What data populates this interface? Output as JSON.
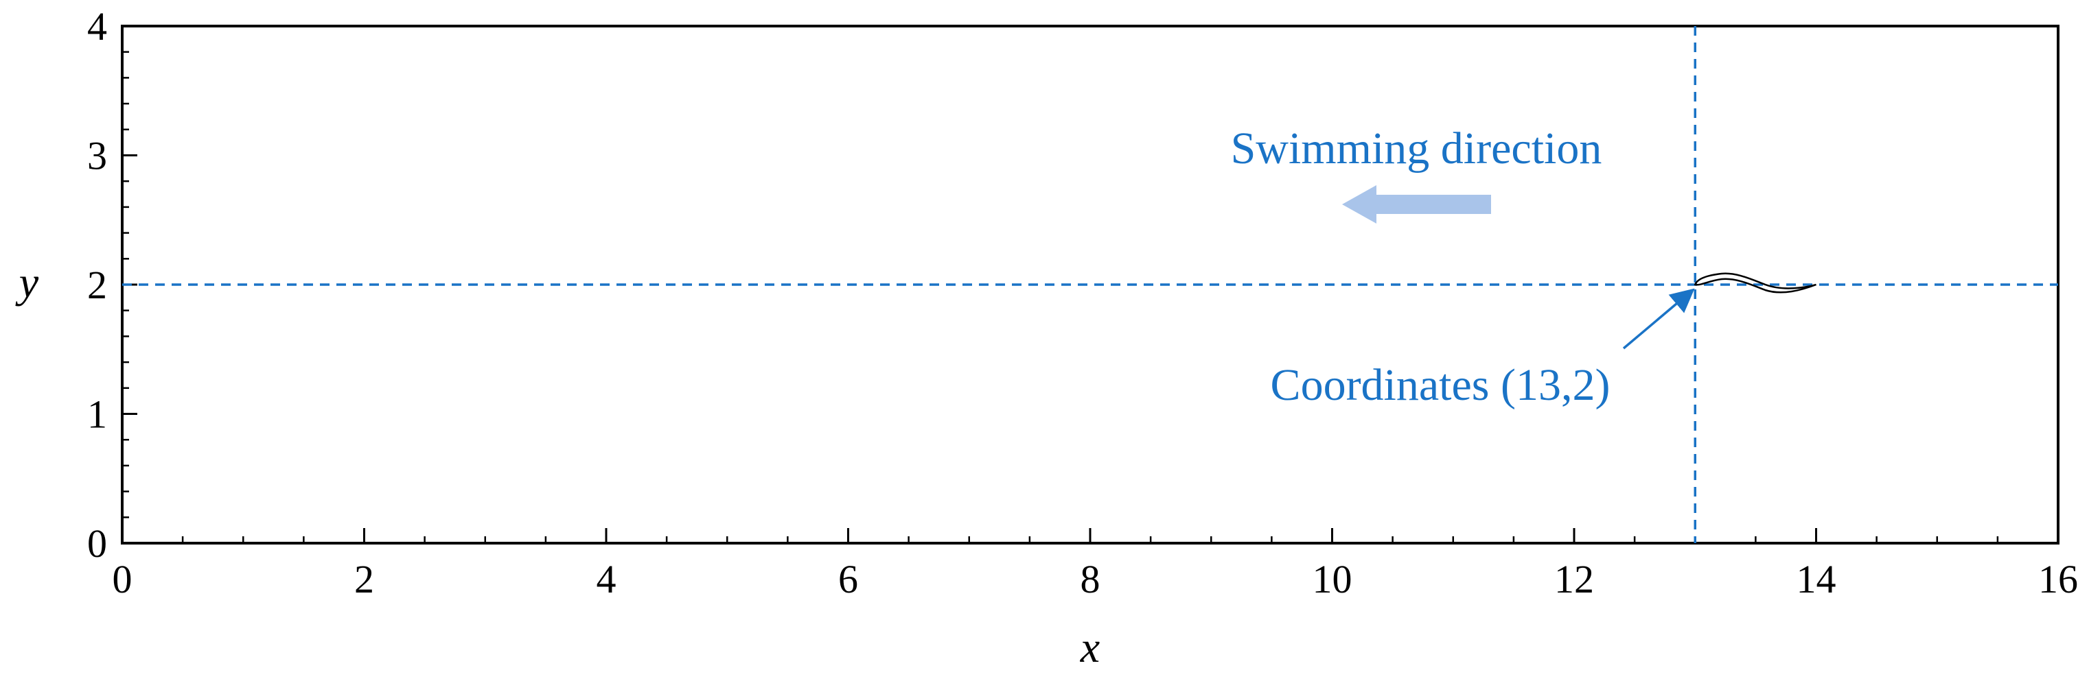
{
  "chart_data": {
    "type": "diagram",
    "xlabel": "x",
    "ylabel": "y",
    "xlim": [
      0,
      16
    ],
    "ylim": [
      0,
      4
    ],
    "x_ticks": [
      "0",
      "2",
      "4",
      "6",
      "8",
      "10",
      "12",
      "14",
      "16"
    ],
    "y_ticks": [
      "0",
      "1",
      "2",
      "3",
      "4"
    ],
    "reference_lines": {
      "horizontal_y": 2,
      "vertical_x": 13,
      "color": "#1a73c6"
    },
    "fish": {
      "head_x": 13,
      "head_y": 2,
      "tail_x": 14
    },
    "direction_arrow": {
      "label": "Swimming direction",
      "color": "#a9c4ea",
      "text_color": "#1a73c6"
    },
    "coordinate_annotation": {
      "label": "Coordinates (13,2)",
      "point": [
        13,
        2
      ],
      "color": "#1a73c6"
    }
  }
}
